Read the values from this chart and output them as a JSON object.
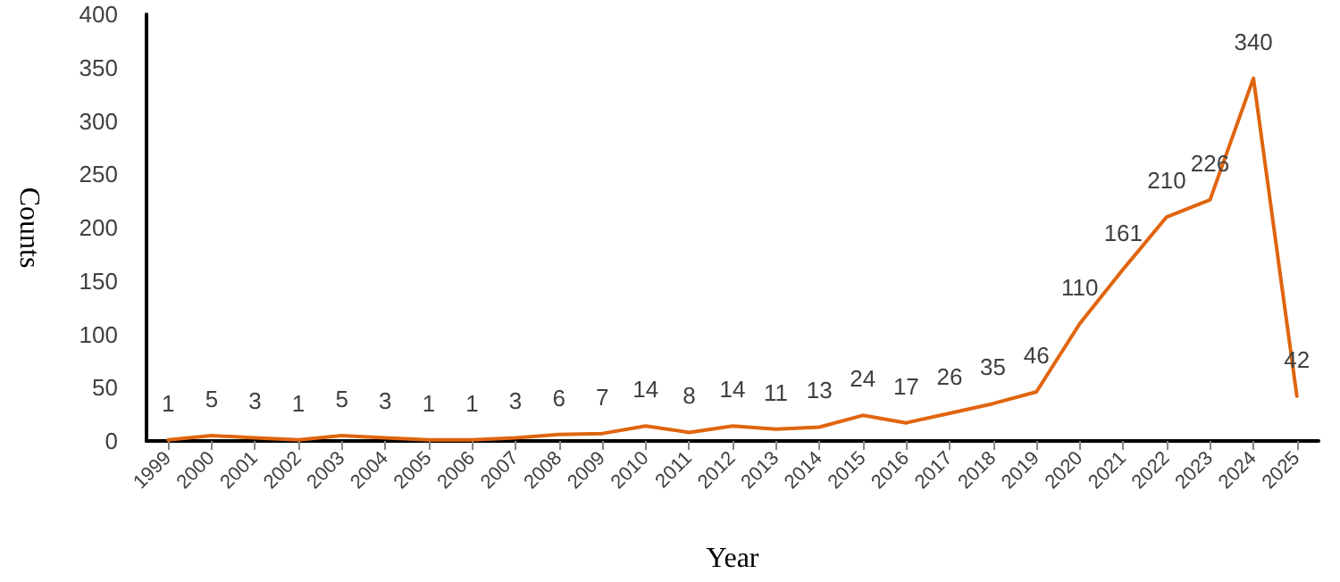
{
  "chart_data": {
    "type": "line",
    "xlabel": "Year",
    "ylabel": "Counts",
    "categories": [
      "1999",
      "2000",
      "2001",
      "2002",
      "2003",
      "2004",
      "2005",
      "2006",
      "2007",
      "2008",
      "2009",
      "2010",
      "2011",
      "2012",
      "2013",
      "2014",
      "2015",
      "2016",
      "2017",
      "2018",
      "2019",
      "2020",
      "2021",
      "2022",
      "2023",
      "2024",
      "2025"
    ],
    "series": [
      {
        "color": "#e0650f",
        "values": [
          1,
          5,
          3,
          1,
          5,
          3,
          1,
          1,
          3,
          6,
          7,
          14,
          8,
          14,
          11,
          13,
          24,
          17,
          26,
          35,
          46,
          110,
          161,
          210,
          226,
          340,
          42
        ]
      }
    ],
    "ylim": [
      0,
      400
    ],
    "yticks": [
      0,
      50,
      100,
      150,
      200,
      250,
      300,
      350,
      400
    ],
    "data_labels": true,
    "grid": false,
    "marker": "none",
    "line_style": "solid"
  }
}
